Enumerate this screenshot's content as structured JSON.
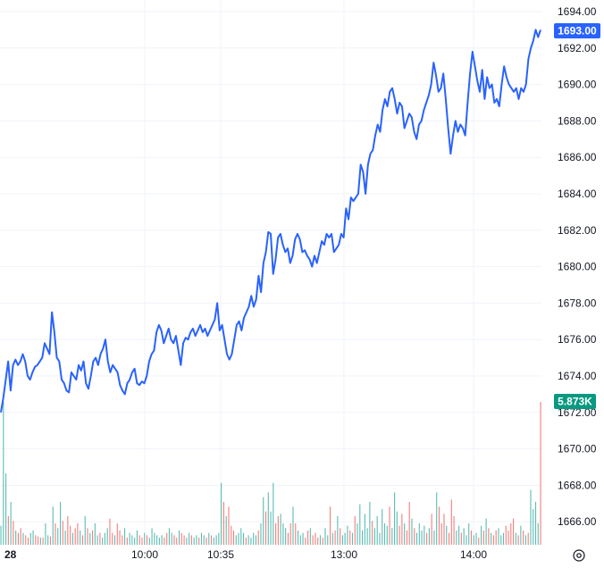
{
  "chart_data": {
    "type": "line",
    "price_axis": {
      "ticks": [
        "1694.00",
        "1692.00",
        "1690.00",
        "1688.00",
        "1686.00",
        "1684.00",
        "1682.00",
        "1680.00",
        "1678.00",
        "1676.00",
        "1674.00",
        "1672.00",
        "1670.00",
        "1668.00",
        "1666.00"
      ],
      "range": [
        1664.6,
        1694.4
      ]
    },
    "time_axis": {
      "labels": [
        "28",
        "10:00",
        "10:35",
        "13:00",
        "14:00"
      ]
    },
    "last_price": "1693.00",
    "last_volume": "5.873K",
    "colors": {
      "line": "#2962ff",
      "price_badge": "#2962ff",
      "volume_badge": "#089981",
      "volume_up": "#26a69a",
      "volume_down": "#ef5350",
      "grid": "#f0f3fa"
    },
    "series": [
      {
        "type": "line",
        "values": [
          1672.0,
          1672.8,
          1673.8,
          1674.8,
          1673.2,
          1674.6,
          1674.9,
          1674.6,
          1674.8,
          1675.2,
          1674.8,
          1674.0,
          1673.8,
          1674.2,
          1674.5,
          1674.6,
          1674.8,
          1675.0,
          1675.8,
          1675.5,
          1675.2,
          1677.5,
          1676.4,
          1675.0,
          1674.8,
          1673.8,
          1673.6,
          1673.2,
          1673.1,
          1674.2,
          1674.0,
          1673.8,
          1674.6,
          1674.3,
          1674.8,
          1673.6,
          1673.3,
          1674.0,
          1674.8,
          1675.0,
          1674.6,
          1675.2,
          1675.5,
          1676.0,
          1674.8,
          1674.2,
          1674.6,
          1674.4,
          1674.2,
          1673.5,
          1673.2,
          1673.0,
          1673.6,
          1673.8,
          1674.2,
          1674.4,
          1673.6,
          1673.5,
          1673.7,
          1673.6,
          1674.0,
          1674.8,
          1675.2,
          1675.4,
          1676.4,
          1676.8,
          1676.5,
          1675.8,
          1676.2,
          1676.6,
          1676.0,
          1675.8,
          1676.2,
          1675.4,
          1674.6,
          1675.8,
          1676.1,
          1676.0,
          1676.4,
          1676.6,
          1676.2,
          1676.5,
          1676.8,
          1676.4,
          1676.6,
          1676.2,
          1676.5,
          1676.8,
          1677.1,
          1678.0,
          1676.5,
          1676.8,
          1676.0,
          1675.2,
          1674.9,
          1675.2,
          1676.0,
          1676.8,
          1677.0,
          1676.5,
          1677.2,
          1677.5,
          1677.8,
          1678.4,
          1677.8,
          1678.2,
          1679.5,
          1678.6,
          1680.2,
          1680.8,
          1681.9,
          1681.8,
          1679.6,
          1680.4,
          1681.6,
          1681.8,
          1681.2,
          1680.8,
          1681.0,
          1680.2,
          1680.6,
          1681.5,
          1681.8,
          1681.5,
          1680.8,
          1680.9,
          1680.6,
          1680.4,
          1680.0,
          1680.6,
          1680.2,
          1680.8,
          1681.4,
          1681.2,
          1681.8,
          1681.6,
          1681.8,
          1680.8,
          1681.0,
          1681.2,
          1681.8,
          1681.6,
          1683.2,
          1682.6,
          1683.8,
          1683.6,
          1683.8,
          1684.0,
          1685.6,
          1685.2,
          1684.0,
          1685.6,
          1686.2,
          1686.4,
          1687.2,
          1687.8,
          1687.4,
          1688.6,
          1689.2,
          1688.8,
          1689.6,
          1689.8,
          1689.2,
          1688.4,
          1689.0,
          1688.8,
          1687.6,
          1688.0,
          1688.4,
          1688.2,
          1687.4,
          1687.0,
          1687.8,
          1688.0,
          1688.6,
          1689.0,
          1689.4,
          1690.0,
          1691.2,
          1690.5,
          1689.6,
          1689.8,
          1690.6,
          1689.2,
          1687.6,
          1686.2,
          1687.2,
          1688.0,
          1687.4,
          1687.8,
          1687.6,
          1687.2,
          1689.0,
          1690.6,
          1691.8,
          1691.0,
          1690.2,
          1689.6,
          1690.8,
          1689.2,
          1690.4,
          1689.8,
          1690.0,
          1689.0,
          1689.2,
          1688.8,
          1690.0,
          1691.0,
          1690.4,
          1690.0,
          1689.8,
          1689.6,
          1689.8,
          1689.2,
          1689.8,
          1689.6,
          1690.0,
          1691.4,
          1692.0,
          1692.4,
          1693.0,
          1692.6,
          1693.0
        ]
      },
      {
        "type": "volume",
        "values": [
          800,
          6000,
          3000,
          1200,
          1800,
          1000,
          600,
          500,
          700,
          500,
          400,
          300,
          500,
          600,
          400,
          350,
          300,
          300,
          900,
          400,
          350,
          1600,
          900,
          700,
          1800,
          1000,
          600,
          1200,
          800,
          500,
          700,
          900,
          600,
          400,
          1200,
          700,
          500,
          600,
          900,
          400,
          500,
          300,
          500,
          700,
          1100,
          500,
          400,
          900,
          600,
          400,
          700,
          300,
          500,
          400,
          300,
          600,
          400,
          300,
          500,
          400,
          300,
          700,
          500,
          400,
          300,
          400,
          300,
          500,
          700,
          500,
          400,
          300,
          600,
          500,
          400,
          300,
          500,
          400,
          300,
          400,
          300,
          500,
          400,
          300,
          500,
          400,
          300,
          400,
          500,
          2600,
          1800,
          1200,
          1600,
          800,
          600,
          400,
          500,
          700,
          500,
          300,
          400,
          300,
          500,
          400,
          600,
          900,
          2000,
          1400,
          2200,
          1400,
          2600,
          900,
          1200,
          1300,
          900,
          700,
          500,
          900,
          1600,
          900,
          600,
          400,
          500,
          300,
          600,
          700,
          400,
          500,
          300,
          400,
          300,
          700,
          400,
          1600,
          500,
          600,
          1200,
          700,
          400,
          500,
          800,
          600,
          500,
          1200,
          900,
          1700,
          600,
          1300,
          700,
          1800,
          1000,
          700,
          1200,
          500,
          1500,
          900,
          800,
          1600,
          700,
          2200,
          1400,
          800,
          1300,
          900,
          600,
          1800,
          1100,
          700,
          500,
          900,
          600,
          800,
          500,
          700,
          1300,
          600,
          2200,
          1600,
          900,
          1300,
          800,
          500,
          1900,
          1200,
          600,
          800,
          500,
          700,
          400,
          900,
          600,
          400,
          500,
          300,
          800,
          600,
          1100,
          700,
          500,
          400,
          600,
          700,
          400,
          500,
          800,
          600,
          900,
          1100,
          500,
          400,
          800,
          600,
          400,
          500,
          2300,
          1500,
          1800,
          900,
          6000
        ],
        "up": [
          1,
          1,
          1,
          0,
          1,
          0,
          1,
          0,
          0,
          1,
          0,
          0,
          1,
          1,
          0,
          0,
          1,
          0,
          1,
          1,
          0,
          1,
          0,
          1,
          1,
          0,
          1,
          0,
          0,
          1,
          0,
          0,
          1,
          0,
          1,
          0,
          1,
          0,
          1,
          1,
          0,
          1,
          1,
          1,
          0,
          0,
          1,
          0,
          0,
          0,
          1,
          0,
          1,
          1,
          1,
          1,
          0,
          0,
          1,
          0,
          1,
          1,
          1,
          1,
          1,
          1,
          0,
          0,
          1,
          1,
          0,
          0,
          1,
          0,
          0,
          1,
          1,
          0,
          1,
          1,
          0,
          1,
          1,
          0,
          1,
          0,
          1,
          1,
          1,
          1,
          0,
          1,
          0,
          0,
          0,
          1,
          1,
          1,
          1,
          0,
          1,
          1,
          1,
          1,
          0,
          1,
          1,
          0,
          1,
          1,
          1,
          0,
          0,
          1,
          1,
          1,
          0,
          0,
          1,
          0,
          1,
          1,
          1,
          0,
          0,
          1,
          0,
          0,
          0,
          1,
          0,
          1,
          1,
          0,
          1,
          0,
          1,
          0,
          1,
          1,
          1,
          0,
          1,
          0,
          1,
          1,
          1,
          1,
          1,
          1,
          0,
          1,
          1,
          1,
          1,
          1,
          1,
          0,
          1,
          1,
          1,
          0,
          0,
          1,
          0,
          0,
          1,
          0,
          1,
          1,
          1,
          1,
          0,
          1,
          0,
          1,
          1,
          0,
          0,
          0,
          1,
          0,
          0,
          0,
          1,
          1,
          0,
          1,
          1,
          1,
          0,
          1,
          1,
          0,
          1,
          0,
          1,
          0,
          1,
          0,
          0,
          1,
          1,
          1,
          0,
          0,
          0,
          0,
          1,
          0,
          1,
          0,
          1,
          0,
          1,
          1,
          1,
          1,
          0,
          1,
          1,
          1
        ]
      }
    ]
  }
}
